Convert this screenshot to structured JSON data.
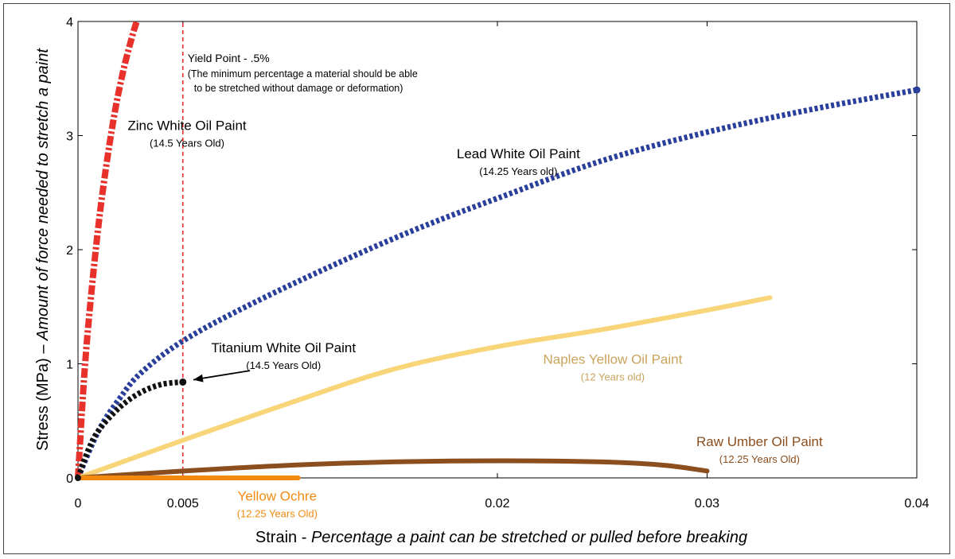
{
  "chart_data": {
    "type": "line",
    "title": "",
    "xlabel_prefix": "Strain - ",
    "xlabel_italic": "Percentage a paint can be stretched or pulled before breaking",
    "ylabel_prefix": "Stress (MPa) – ",
    "ylabel_italic": "Amount of force needed to stretch a paint",
    "xlim": [
      0,
      0.04
    ],
    "ylim": [
      0,
      4
    ],
    "x_ticks": [
      {
        "value": 0,
        "label": "0"
      },
      {
        "value": 0.005,
        "label": "0.005"
      },
      {
        "value": 0.02,
        "label": "0.02"
      },
      {
        "value": 0.03,
        "label": "0.03"
      },
      {
        "value": 0.04,
        "label": "0.04"
      }
    ],
    "y_ticks": [
      {
        "value": 0,
        "label": "0"
      },
      {
        "value": 1,
        "label": "1"
      },
      {
        "value": 2,
        "label": "2"
      },
      {
        "value": 3,
        "label": "3"
      },
      {
        "value": 4,
        "label": "4"
      }
    ],
    "yield_line": {
      "x": 0.005,
      "label": "Yield Point - .5%",
      "note_line1": "(The minimum percentage a material should be able",
      "note_line2": "to be stretched without damage or deformation)",
      "color": "#e8312a"
    },
    "series": [
      {
        "name": "Zinc White Oil Paint",
        "sub": "(14.5 Years Old)",
        "color": "#e8312a",
        "style": "dashdot",
        "x": [
          0,
          0.0003,
          0.0006,
          0.001,
          0.0014,
          0.0018,
          0.0022,
          0.0026,
          0.0028
        ],
        "y": [
          0,
          0.9,
          1.55,
          2.25,
          2.8,
          3.25,
          3.6,
          3.88,
          4.0
        ]
      },
      {
        "name": "Lead White Oil Paint",
        "sub": "(14.25 Years old)",
        "color": "#2a3f9a",
        "style": "dotted",
        "x": [
          0,
          0.001,
          0.002,
          0.003,
          0.005,
          0.008,
          0.012,
          0.016,
          0.02,
          0.025,
          0.03,
          0.035,
          0.04
        ],
        "y": [
          0,
          0.42,
          0.7,
          0.92,
          1.2,
          1.5,
          1.85,
          2.17,
          2.45,
          2.78,
          3.03,
          3.23,
          3.4
        ]
      },
      {
        "name": "Titanium White Oil Paint",
        "sub": "(14.5 Years Old)",
        "color": "#111111",
        "style": "dotted",
        "x": [
          0,
          0.0005,
          0.001,
          0.002,
          0.003,
          0.004,
          0.005
        ],
        "y": [
          0,
          0.25,
          0.42,
          0.62,
          0.75,
          0.82,
          0.84
        ]
      },
      {
        "name": "Naples Yellow Oil Paint",
        "sub": "(12 Years old)",
        "color": "#f9d57a",
        "style": "solid",
        "x": [
          0,
          0.005,
          0.01,
          0.015,
          0.02,
          0.025,
          0.03,
          0.033
        ],
        "y": [
          0,
          0.33,
          0.65,
          0.95,
          1.15,
          1.3,
          1.47,
          1.58
        ]
      },
      {
        "name": "Raw Umber Oil Paint",
        "sub": "(12.25 Years Old)",
        "color": "#8b4e1e",
        "style": "solid",
        "x": [
          0,
          0.005,
          0.01,
          0.015,
          0.02,
          0.025,
          0.028,
          0.03
        ],
        "y": [
          0,
          0.06,
          0.11,
          0.14,
          0.15,
          0.14,
          0.11,
          0.06
        ]
      },
      {
        "name": "Yellow Ochre",
        "sub": "(12.25 Years Old)",
        "color": "#f28a10",
        "style": "solid",
        "x": [
          0,
          0.0105
        ],
        "y": [
          0,
          0
        ]
      }
    ],
    "annotations": [
      {
        "text": "Zinc White Oil Paint",
        "sub": "(14.5 Years Old)",
        "color": "#000000",
        "x": 0.0052,
        "y": 3.05
      },
      {
        "text": "Lead White Oil Paint",
        "sub": "(14.25 Years old)",
        "color": "#000000",
        "x": 0.021,
        "y": 2.8
      },
      {
        "text": "Titanium White Oil Paint",
        "sub": "(14.5 Years Old)",
        "color": "#000000",
        "x": 0.0098,
        "y": 1.1
      },
      {
        "text": "Naples Yellow Oil Paint",
        "sub": "(12 Years old)",
        "color": "#c9a35c",
        "x": 0.0255,
        "y": 1.0
      },
      {
        "text": "Raw Umber Oil Paint",
        "sub": "(12.25 Years Old)",
        "color": "#8b4e1e",
        "x": 0.0325,
        "y": 0.28
      },
      {
        "text": "Yellow Ochre",
        "sub": "(12.25 Years Old)",
        "color": "#f28a10",
        "x": 0.0095,
        "y": -0.2
      }
    ],
    "arrow": {
      "from": [
        0.0082,
        0.94
      ],
      "to": [
        0.0055,
        0.86
      ]
    }
  }
}
